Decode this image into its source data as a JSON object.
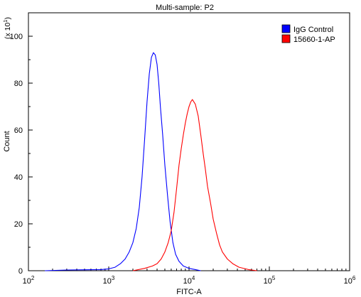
{
  "chart_data": {
    "type": "line",
    "title": "Multi-sample: P2",
    "xlabel": "FITC-A",
    "ylabel": "Count",
    "y_multiplier_label": "(x 10",
    "y_multiplier_exp": "1",
    "x_scale": "log",
    "x_range": [
      100,
      1000000
    ],
    "y_range": [
      0,
      110
    ],
    "x_ticks": [
      {
        "value": 100,
        "base": "10",
        "exp": "2"
      },
      {
        "value": 1000,
        "base": "10",
        "exp": "3"
      },
      {
        "value": 10000,
        "base": "10",
        "exp": "4"
      },
      {
        "value": 100000,
        "base": "10",
        "exp": "5"
      },
      {
        "value": 1000000,
        "base": "10",
        "exp": "6"
      }
    ],
    "y_ticks": [
      "0",
      "20",
      "40",
      "60",
      "80",
      "100"
    ],
    "legend_position": "top-right",
    "grid": false,
    "series": [
      {
        "name": "IgG Control",
        "color": "#0000ff",
        "points": [
          [
            160,
            0
          ],
          [
            300,
            0.3
          ],
          [
            500,
            0.4
          ],
          [
            800,
            0.5
          ],
          [
            1000,
            0.8
          ],
          [
            1200,
            1.5
          ],
          [
            1400,
            3
          ],
          [
            1600,
            5
          ],
          [
            1800,
            8
          ],
          [
            2000,
            12
          ],
          [
            2200,
            18
          ],
          [
            2400,
            27
          ],
          [
            2600,
            40
          ],
          [
            2800,
            56
          ],
          [
            3000,
            72
          ],
          [
            3200,
            84
          ],
          [
            3400,
            91
          ],
          [
            3600,
            93
          ],
          [
            3800,
            92
          ],
          [
            4000,
            88
          ],
          [
            4200,
            80
          ],
          [
            4400,
            70
          ],
          [
            4700,
            58
          ],
          [
            5000,
            45
          ],
          [
            5400,
            32
          ],
          [
            5800,
            21
          ],
          [
            6300,
            12
          ],
          [
            6800,
            7
          ],
          [
            7500,
            4
          ],
          [
            8500,
            2
          ],
          [
            10000,
            1
          ],
          [
            12000,
            0.5
          ],
          [
            14000,
            0
          ]
        ]
      },
      {
        "name": "15660-1-AP",
        "color": "#ff0000",
        "points": [
          [
            2000,
            0
          ],
          [
            2800,
            1
          ],
          [
            3500,
            2
          ],
          [
            4000,
            3
          ],
          [
            4500,
            5
          ],
          [
            5000,
            8
          ],
          [
            5500,
            12
          ],
          [
            6000,
            17
          ],
          [
            6500,
            25
          ],
          [
            7000,
            35
          ],
          [
            7500,
            45
          ],
          [
            8000,
            52
          ],
          [
            8500,
            58
          ],
          [
            9000,
            63
          ],
          [
            9500,
            67
          ],
          [
            10000,
            70
          ],
          [
            10500,
            72
          ],
          [
            11000,
            73
          ],
          [
            12000,
            71
          ],
          [
            13000,
            66
          ],
          [
            14000,
            58
          ],
          [
            15000,
            50
          ],
          [
            16000,
            43
          ],
          [
            17000,
            36
          ],
          [
            18500,
            29
          ],
          [
            20000,
            22
          ],
          [
            22000,
            16
          ],
          [
            24000,
            11
          ],
          [
            26000,
            8
          ],
          [
            30000,
            5
          ],
          [
            35000,
            3
          ],
          [
            42000,
            1.5
          ],
          [
            55000,
            0.5
          ],
          [
            70000,
            0
          ]
        ]
      }
    ]
  }
}
